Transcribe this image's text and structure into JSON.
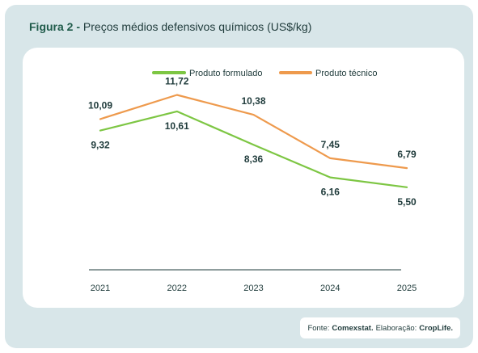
{
  "figure": {
    "lead": "Figura 2 -",
    "title": "Preços médios defensivos químicos (US$/kg)"
  },
  "source": {
    "prefix": "Fonte:",
    "source_name": "Comexstat.",
    "elab_prefix": "Elaboração:",
    "elab_name": "CropLife."
  },
  "chart_data": {
    "type": "line",
    "x": [
      "2021",
      "2022",
      "2023",
      "2024",
      "2025"
    ],
    "ylim": [
      0,
      13
    ],
    "legend_position": "top-center",
    "grid": false,
    "series": [
      {
        "name": "Produto formulado",
        "color": "#7dc643",
        "values": [
          9.32,
          10.61,
          8.36,
          6.16,
          5.5
        ],
        "labels": [
          "9,32",
          "10,61",
          "8,36",
          "6,16",
          "5,50"
        ]
      },
      {
        "name": "Produto técnico",
        "color": "#ee9a4d",
        "values": [
          10.09,
          11.72,
          10.38,
          7.45,
          6.79
        ],
        "labels": [
          "10,09",
          "11,72",
          "10,38",
          "7,45",
          "6,79"
        ]
      }
    ]
  }
}
